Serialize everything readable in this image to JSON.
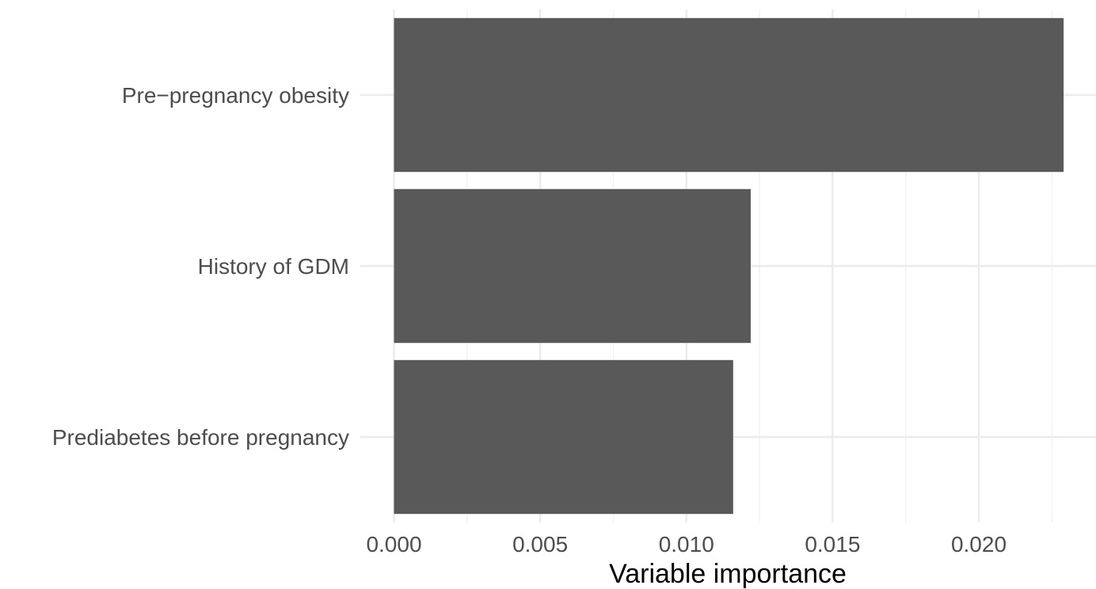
{
  "chart_data": {
    "type": "bar",
    "orientation": "horizontal",
    "categories": [
      "Pre−pregnancy obesity",
      "History of GDM",
      "Prediabetes before pregnancy"
    ],
    "values": [
      0.0229,
      0.0122,
      0.0116
    ],
    "title": "",
    "xlabel": "Variable importance",
    "ylabel": "",
    "xlim": [
      0,
      0.023
    ],
    "xticks": [
      "0.000",
      "0.005",
      "0.010",
      "0.015",
      "0.020"
    ],
    "xtick_values": [
      0,
      0.005,
      0.01,
      0.015,
      0.02
    ],
    "grid": true,
    "legend": "none",
    "bar_color": "#595959",
    "grid_color": "#ebebeb"
  }
}
